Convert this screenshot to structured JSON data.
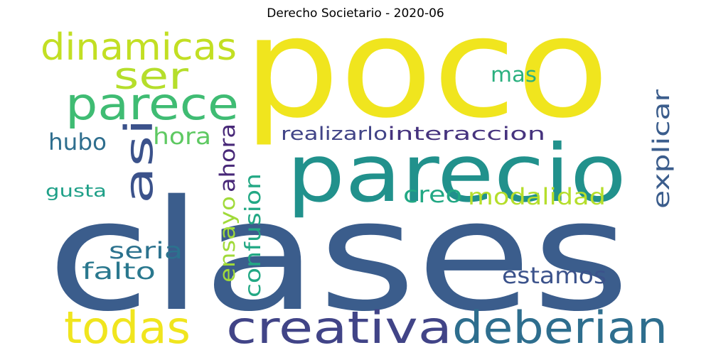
{
  "title": "Derecho Societario - 2020-06",
  "words": [
    {
      "text": "poco",
      "color": "#f0e51e"
    },
    {
      "text": "clases",
      "color": "#3b5d8c"
    },
    {
      "text": "parecio",
      "color": "#21918c"
    },
    {
      "text": "creativa",
      "color": "#414487"
    },
    {
      "text": "deberian",
      "color": "#2e6e8e"
    },
    {
      "text": "todas",
      "color": "#f0e51e"
    },
    {
      "text": "parece",
      "color": "#3fbc73"
    },
    {
      "text": "dinamicas",
      "color": "#c2df23"
    },
    {
      "text": "ser",
      "color": "#b5de2b"
    },
    {
      "text": "asi",
      "color": "#3b528b"
    },
    {
      "text": "mas",
      "color": "#2ab07f"
    },
    {
      "text": "explicar",
      "color": "#3b5d8c"
    },
    {
      "text": "realizarlo",
      "color": "#414487"
    },
    {
      "text": "interaccion",
      "color": "#46337e"
    },
    {
      "text": "hubo",
      "color": "#2e6e8e"
    },
    {
      "text": "hora",
      "color": "#5ec962"
    },
    {
      "text": "ahora",
      "color": "#482878"
    },
    {
      "text": "gusta",
      "color": "#1fa088"
    },
    {
      "text": "confusion",
      "color": "#22a884"
    },
    {
      "text": "creo",
      "color": "#22a884"
    },
    {
      "text": "modalidad",
      "color": "#b5de2b"
    },
    {
      "text": "seria",
      "color": "#2c728e"
    },
    {
      "text": "falto",
      "color": "#2a788e"
    },
    {
      "text": "ensayo",
      "color": "#a0da39"
    },
    {
      "text": "estamos",
      "color": "#3b528b"
    }
  ]
}
